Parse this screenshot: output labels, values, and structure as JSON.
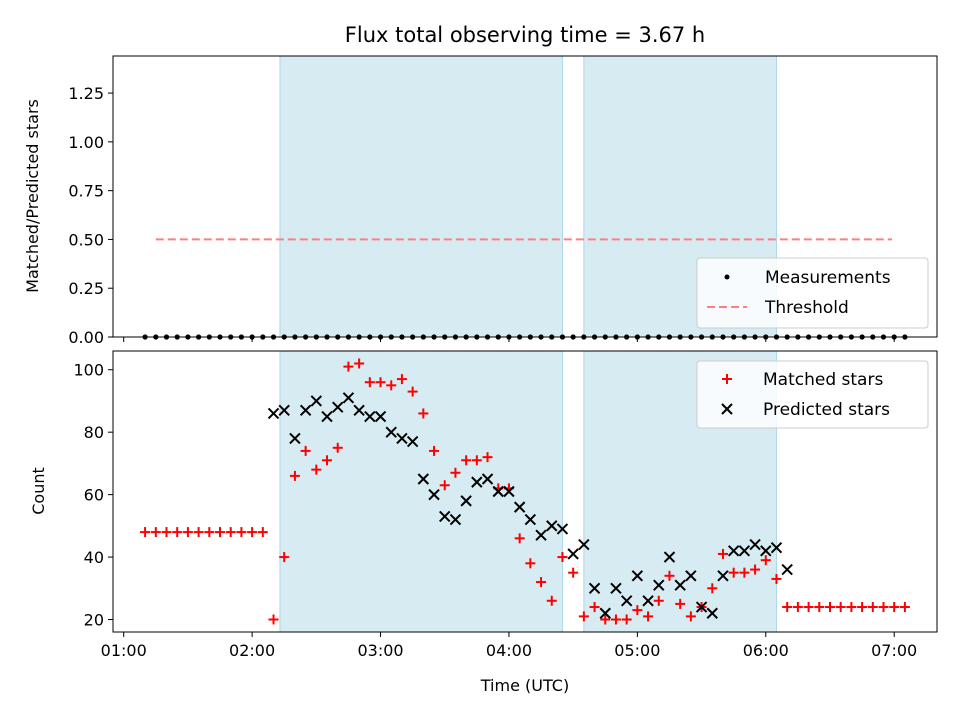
{
  "chart_data": {
    "type": "scatter",
    "title": "Flux total observing time = 3.67 h",
    "xlabel": "Time (UTC)",
    "x_unit": "time of day (HH:MM, UTC)",
    "xlim": [
      "00:55",
      "07:20"
    ],
    "xticks": [
      "01:00",
      "02:00",
      "03:00",
      "04:00",
      "05:00",
      "06:00",
      "07:00"
    ],
    "colors": {
      "shade": "#add8e6",
      "measurement": "#000000",
      "threshold": "#ff7f7f",
      "matched": "#ff0000",
      "predicted": "#000000"
    },
    "shaded_intervals": [
      [
        "02:13",
        "04:25"
      ],
      [
        "04:35",
        "06:05"
      ]
    ],
    "times": [
      "01:10",
      "01:15",
      "01:20",
      "01:25",
      "01:30",
      "01:35",
      "01:40",
      "01:45",
      "01:50",
      "01:55",
      "02:00",
      "02:05",
      "02:10",
      "02:15",
      "02:20",
      "02:25",
      "02:30",
      "02:35",
      "02:40",
      "02:45",
      "02:50",
      "02:55",
      "03:00",
      "03:05",
      "03:10",
      "03:15",
      "03:20",
      "03:25",
      "03:30",
      "03:35",
      "03:40",
      "03:45",
      "03:50",
      "03:55",
      "04:00",
      "04:05",
      "04:10",
      "04:15",
      "04:20",
      "04:25",
      "04:30",
      "04:35",
      "04:40",
      "04:45",
      "04:50",
      "04:55",
      "05:00",
      "05:05",
      "05:10",
      "05:15",
      "05:20",
      "05:25",
      "05:30",
      "05:35",
      "05:40",
      "05:45",
      "05:50",
      "05:55",
      "06:00",
      "06:05",
      "06:10",
      "06:15",
      "06:20",
      "06:25",
      "06:30",
      "06:35",
      "06:40",
      "06:45",
      "06:50",
      "06:55",
      "07:00",
      "07:05"
    ],
    "panels": [
      {
        "ylabel": "Matched/Predicted stars",
        "ylim": [
          0,
          1.44
        ],
        "yticks": [
          "0.00",
          "0.25",
          "0.50",
          "0.75",
          "1.00",
          "1.25"
        ],
        "legend_position": "lower-right",
        "series": [
          {
            "name": "Measurements",
            "marker": "dot",
            "values": [
              0,
              0,
              0,
              0,
              0,
              0,
              0,
              0,
              0,
              0,
              0,
              0,
              0,
              0,
              0,
              0,
              0,
              0,
              0,
              0,
              0,
              0,
              0,
              0,
              0,
              0,
              0,
              0,
              0,
              0,
              0,
              0,
              0,
              0,
              0,
              0,
              0,
              0,
              0,
              0,
              0,
              0,
              0,
              0,
              0,
              0,
              0,
              0,
              0,
              0,
              0,
              0,
              0,
              0,
              0,
              0,
              0,
              0,
              0,
              0,
              0,
              0,
              0,
              0,
              0,
              0,
              0,
              0,
              0,
              0,
              0,
              0
            ]
          }
        ],
        "threshold": {
          "name": "Threshold",
          "value": 0.5,
          "x_range": [
            "01:15",
            "06:59"
          ]
        }
      },
      {
        "ylabel": "Count",
        "ylim": [
          16,
          106
        ],
        "yticks": [
          "20",
          "40",
          "60",
          "80",
          "100"
        ],
        "legend_position": "upper-right",
        "series": [
          {
            "name": "Matched stars",
            "marker": "plus",
            "values": [
              48,
              48,
              48,
              48,
              48,
              48,
              48,
              48,
              48,
              48,
              48,
              48,
              20,
              40,
              66,
              74,
              68,
              71,
              75,
              101,
              102,
              96,
              96,
              95,
              97,
              93,
              86,
              74,
              63,
              67,
              71,
              71,
              72,
              62,
              62,
              46,
              38,
              32,
              26,
              40,
              35,
              21,
              24,
              20,
              20,
              20,
              23,
              21,
              26,
              34,
              25,
              21,
              24,
              30,
              41,
              35,
              35,
              36,
              39,
              33,
              24,
              24,
              24,
              24,
              24,
              24,
              24,
              24,
              24,
              24,
              24,
              24
            ]
          },
          {
            "name": "Predicted stars",
            "marker": "x",
            "values": [
              null,
              null,
              null,
              null,
              null,
              null,
              null,
              null,
              null,
              null,
              null,
              null,
              86,
              87,
              78,
              87,
              90,
              85,
              88,
              91,
              87,
              85,
              85,
              80,
              78,
              77,
              65,
              60,
              53,
              52,
              58,
              64,
              65,
              61,
              61,
              56,
              52,
              47,
              50,
              49,
              41,
              44,
              30,
              22,
              30,
              26,
              34,
              26,
              31,
              40,
              31,
              34,
              24,
              22,
              34,
              42,
              42,
              44,
              42,
              43,
              36,
              null,
              null,
              null,
              null,
              null,
              null,
              null,
              null,
              null,
              null,
              null
            ]
          }
        ]
      }
    ]
  }
}
